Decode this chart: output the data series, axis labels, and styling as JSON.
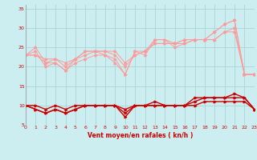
{
  "x": [
    0,
    1,
    2,
    3,
    4,
    5,
    6,
    7,
    8,
    9,
    10,
    11,
    12,
    13,
    14,
    15,
    16,
    17,
    18,
    19,
    20,
    21,
    22,
    23
  ],
  "line1": [
    23,
    25,
    21,
    21,
    19,
    21,
    22,
    23,
    23,
    21,
    18,
    24,
    23,
    27,
    27,
    25,
    26,
    27,
    27,
    29,
    31,
    32,
    18,
    18
  ],
  "line2": [
    23,
    24,
    20,
    21,
    19,
    22,
    23,
    24,
    23,
    22,
    18,
    24,
    24,
    27,
    27,
    26,
    26,
    27,
    27,
    29,
    31,
    32,
    18,
    18
  ],
  "line3": [
    23,
    23,
    21,
    22,
    20,
    22,
    24,
    24,
    24,
    23,
    20,
    23,
    24,
    26,
    26,
    26,
    27,
    27,
    27,
    27,
    29,
    30,
    18,
    18
  ],
  "line4": [
    23,
    23,
    22,
    22,
    21,
    22,
    24,
    24,
    24,
    24,
    21,
    23,
    24,
    26,
    26,
    26,
    27,
    27,
    27,
    27,
    29,
    29,
    18,
    18
  ],
  "line5_dark": [
    10,
    9,
    8,
    9,
    8,
    9,
    10,
    10,
    10,
    10,
    7,
    10,
    10,
    11,
    10,
    10,
    10,
    12,
    12,
    12,
    12,
    13,
    12,
    9
  ],
  "line6_dark": [
    10,
    9,
    8,
    9,
    8,
    9,
    10,
    10,
    10,
    10,
    8,
    10,
    10,
    10,
    10,
    10,
    10,
    11,
    12,
    12,
    12,
    12,
    12,
    9
  ],
  "line7_darkest": [
    10,
    10,
    9,
    10,
    9,
    10,
    10,
    10,
    10,
    10,
    9,
    10,
    10,
    10,
    10,
    10,
    10,
    10,
    11,
    11,
    11,
    11,
    11,
    9
  ],
  "bg_color": "#cceef0",
  "grid_color": "#aad4d8",
  "line_color_light": "#ff9999",
  "line_color_dark": "#cc0000",
  "xlabel": "Vent moyen/en rafales ( kn/h )",
  "ylim": [
    5,
    36
  ],
  "xlim": [
    0,
    23
  ],
  "yticks": [
    5,
    10,
    15,
    20,
    25,
    30,
    35
  ],
  "xticks": [
    0,
    1,
    2,
    3,
    4,
    5,
    6,
    7,
    8,
    9,
    10,
    11,
    12,
    13,
    14,
    15,
    16,
    17,
    18,
    19,
    20,
    21,
    22,
    23
  ]
}
